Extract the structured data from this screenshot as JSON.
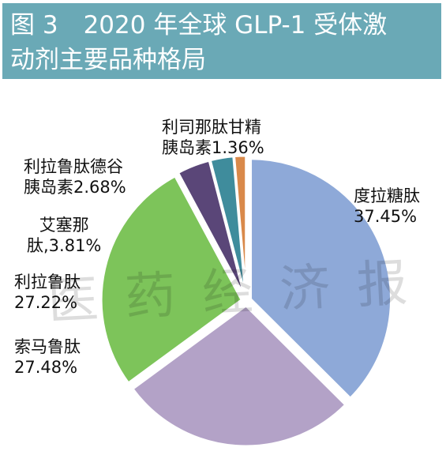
{
  "header": {
    "figure": "图 3",
    "title_line1": "2020 年全球 GLP-1 受体激",
    "title_line2": "动剂主要品种格局",
    "background_color": "#6aa9b6"
  },
  "watermark": "医药经济报",
  "chart_data": {
    "type": "pie",
    "title": "2020 年全球 GLP-1 受体激动剂主要品种格局",
    "unit": "%",
    "start_angle_deg": 0,
    "direction": "clockwise",
    "exploded": true,
    "slices": [
      {
        "name": "度拉糖肽",
        "value": 37.45,
        "label_line1": "度拉糖肽",
        "label_line2": "37.45%",
        "color": "#8ea9d8"
      },
      {
        "name": "索马鲁肽",
        "value": 27.48,
        "label_line1": "索马鲁肽",
        "label_line2": "27.48%",
        "color": "#b3a2c7"
      },
      {
        "name": "利拉鲁肽",
        "value": 27.22,
        "label_line1": "利拉鲁肽",
        "label_line2": "27.22%",
        "color": "#7dc45a"
      },
      {
        "name": "艾塞那肽",
        "value": 3.81,
        "label_line1": "艾塞那",
        "label_line2": "肽,3.81%",
        "color": "#5a4678"
      },
      {
        "name": "利拉鲁肽德谷胰岛素",
        "value": 2.68,
        "label_line1": "利拉鲁肽德谷",
        "label_line2": "胰岛素2.68%",
        "color": "#3f8c9c"
      },
      {
        "name": "利司那肽甘精胰岛素",
        "value": 1.36,
        "label_line1": "利司那肽甘精",
        "label_line2": "胰岛素1.36%",
        "color": "#d9894a"
      }
    ]
  }
}
